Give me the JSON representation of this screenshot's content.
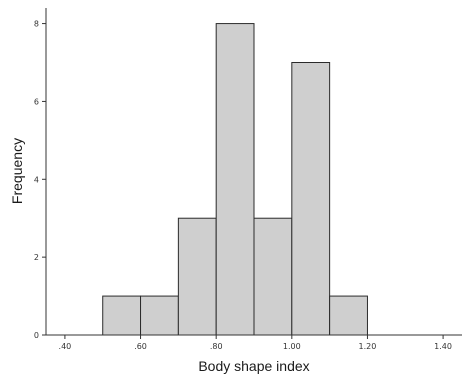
{
  "chart_data": {
    "type": "bar",
    "xlabel": "Body shape index",
    "ylabel": "Frequency",
    "xlim": [
      0.35,
      1.45
    ],
    "ylim": [
      0,
      8.4
    ],
    "x_ticks": [
      {
        "value": 0.4,
        "label": ".40"
      },
      {
        "value": 0.6,
        "label": ".60"
      },
      {
        "value": 0.8,
        "label": ".80"
      },
      {
        "value": 1.0,
        "label": "1.00"
      },
      {
        "value": 1.2,
        "label": "1.20"
      },
      {
        "value": 1.4,
        "label": "1.40"
      }
    ],
    "y_ticks": [
      {
        "value": 0,
        "label": "0"
      },
      {
        "value": 2,
        "label": "2"
      },
      {
        "value": 4,
        "label": "4"
      },
      {
        "value": 6,
        "label": "6"
      },
      {
        "value": 8,
        "label": "8"
      }
    ],
    "bins": [
      {
        "start": 0.5,
        "end": 0.6,
        "count": 1
      },
      {
        "start": 0.6,
        "end": 0.7,
        "count": 1
      },
      {
        "start": 0.7,
        "end": 0.8,
        "count": 3
      },
      {
        "start": 0.8,
        "end": 0.9,
        "count": 8
      },
      {
        "start": 0.9,
        "end": 1.0,
        "count": 3
      },
      {
        "start": 1.0,
        "end": 1.1,
        "count": 7
      },
      {
        "start": 1.1,
        "end": 1.2,
        "count": 1
      }
    ],
    "bar_fill": "#cfcfcf",
    "bar_stroke": "#2b2b2b",
    "grid": false,
    "legend": "none"
  }
}
